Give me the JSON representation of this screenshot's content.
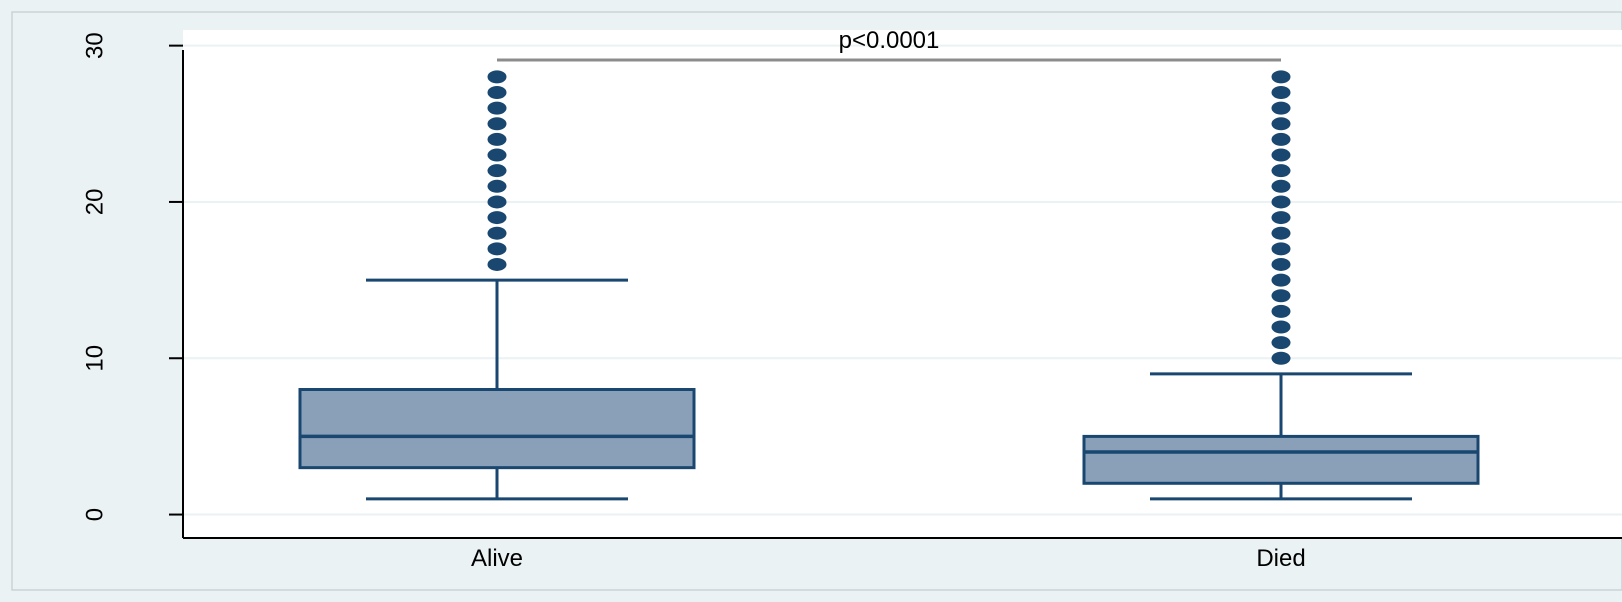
{
  "chart_data": {
    "type": "box",
    "title": "",
    "xlabel": "",
    "ylabel": "",
    "ylim": [
      -1.5,
      31
    ],
    "yticks": [
      0,
      10,
      20,
      30
    ],
    "grid": true,
    "annotation": "p<0.0001",
    "categories": [
      "Alive",
      "Died"
    ],
    "boxes": [
      {
        "category": "Alive",
        "whisker_low": 1,
        "q1": 3,
        "median": 5,
        "q3": 8,
        "whisker_high": 15,
        "outliers": [
          16,
          17,
          18,
          19,
          20,
          21,
          22,
          23,
          24,
          25,
          26,
          27,
          28
        ]
      },
      {
        "category": "Died",
        "whisker_low": 1,
        "q1": 2,
        "median": 4,
        "q3": 5,
        "whisker_high": 9,
        "outliers": [
          10,
          11,
          12,
          13,
          14,
          15,
          16,
          17,
          18,
          19,
          20,
          21,
          22,
          23,
          24,
          25,
          26,
          27,
          28
        ]
      }
    ],
    "colors": {
      "outer_background": "#eaf2f3",
      "plot_background": "#ffffff",
      "box_fill": "#8aa0b9",
      "box_stroke": "#1a476f",
      "outlier": "#1a476f",
      "grid": "#eaf2f3",
      "axis": "#000000",
      "bracket": "#8c8c8c"
    }
  }
}
